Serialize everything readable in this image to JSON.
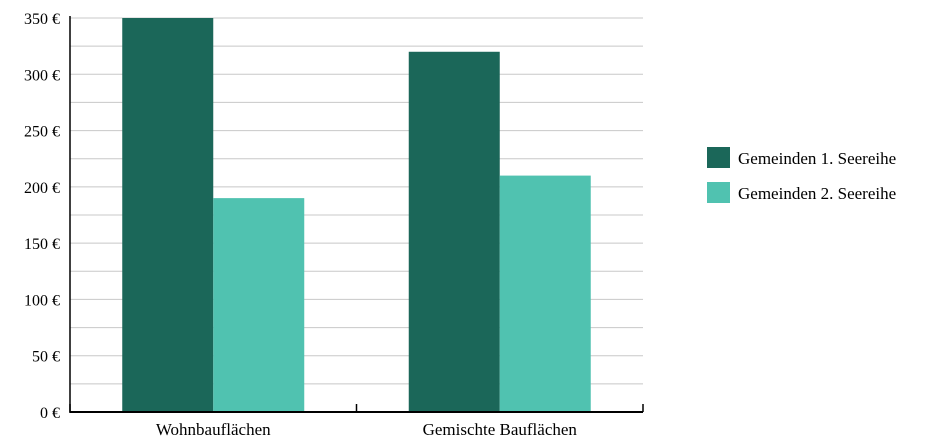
{
  "chart_data": {
    "type": "bar",
    "categories": [
      "Wohnbauflächen",
      "Gemischte Bauflächen"
    ],
    "series": [
      {
        "name": "Gemeinden 1. Seereihe",
        "values": [
          350,
          320
        ],
        "color": "#1b6759"
      },
      {
        "name": "Gemeinden 2. Seereihe",
        "values": [
          190,
          210
        ],
        "color": "#50c2b0"
      }
    ],
    "xlabel": "",
    "ylabel": "",
    "ylim": [
      0,
      350
    ],
    "y_ticks": [
      0,
      50,
      100,
      150,
      200,
      250,
      300,
      350
    ],
    "y_tick_suffix": " €",
    "minor_gridlines_every": 25,
    "grid": true,
    "legend_position": "right"
  }
}
